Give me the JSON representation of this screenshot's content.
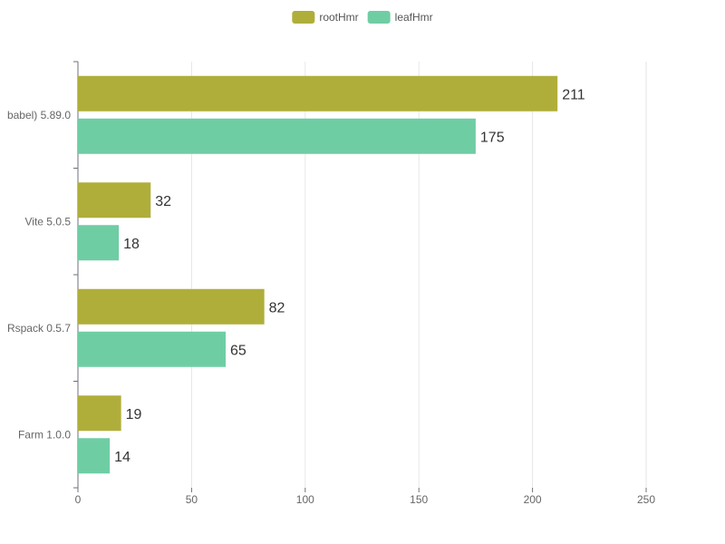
{
  "chart_data": {
    "type": "bar",
    "orientation": "horizontal",
    "title": "",
    "xlabel": "",
    "ylabel": "",
    "categories": [
      "babel) 5.89.0",
      "Vite 5.0.5",
      "Rspack 0.5.7",
      "Farm 1.0.0"
    ],
    "series": [
      {
        "name": "rootHmr",
        "color": "#afae3a",
        "values": [
          211,
          32,
          82,
          19
        ]
      },
      {
        "name": "leafHmr",
        "color": "#6fcda4",
        "values": [
          175,
          18,
          65,
          14
        ]
      }
    ],
    "xlim": [
      0,
      250
    ],
    "x_ticks": [
      "0",
      "50",
      "100",
      "150",
      "200",
      "250"
    ],
    "grid": true,
    "legend": "top-center"
  }
}
